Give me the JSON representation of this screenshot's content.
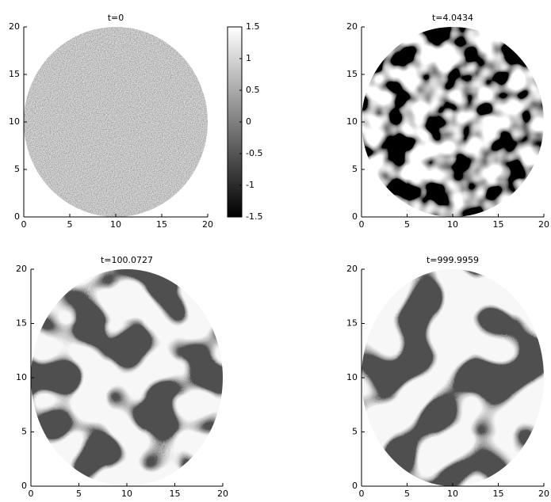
{
  "chart_data": [
    {
      "type": "heatmap",
      "title": "t=0",
      "xlim": [
        0,
        20
      ],
      "ylim": [
        0,
        20
      ],
      "xticks": [
        0,
        5,
        10,
        15,
        20
      ],
      "yticks": [
        0,
        5,
        10,
        15,
        20
      ],
      "colorbar": {
        "clim": [
          -1.5,
          1.5
        ],
        "ticks": [
          -1.5,
          -1,
          -0.5,
          0,
          0.5,
          1,
          1.5
        ]
      }
    },
    {
      "type": "heatmap",
      "title": "t=4.0434",
      "xlim": [
        0,
        20
      ],
      "ylim": [
        0,
        20
      ],
      "xticks": [
        0,
        5,
        10,
        15,
        20
      ],
      "yticks": [
        0,
        5,
        10,
        15,
        20
      ]
    },
    {
      "type": "heatmap",
      "title": "t=100.0727",
      "xlim": [
        0,
        20
      ],
      "ylim": [
        0,
        20
      ],
      "xticks": [
        0,
        5,
        10,
        15,
        20
      ],
      "yticks": [
        0,
        5,
        10,
        15,
        20
      ]
    },
    {
      "type": "heatmap",
      "title": "t=999.9959",
      "xlim": [
        0,
        20
      ],
      "ylim": [
        0,
        20
      ],
      "xticks": [
        0,
        5,
        10,
        15,
        20
      ],
      "yticks": [
        0,
        5,
        10,
        15,
        20
      ]
    }
  ]
}
